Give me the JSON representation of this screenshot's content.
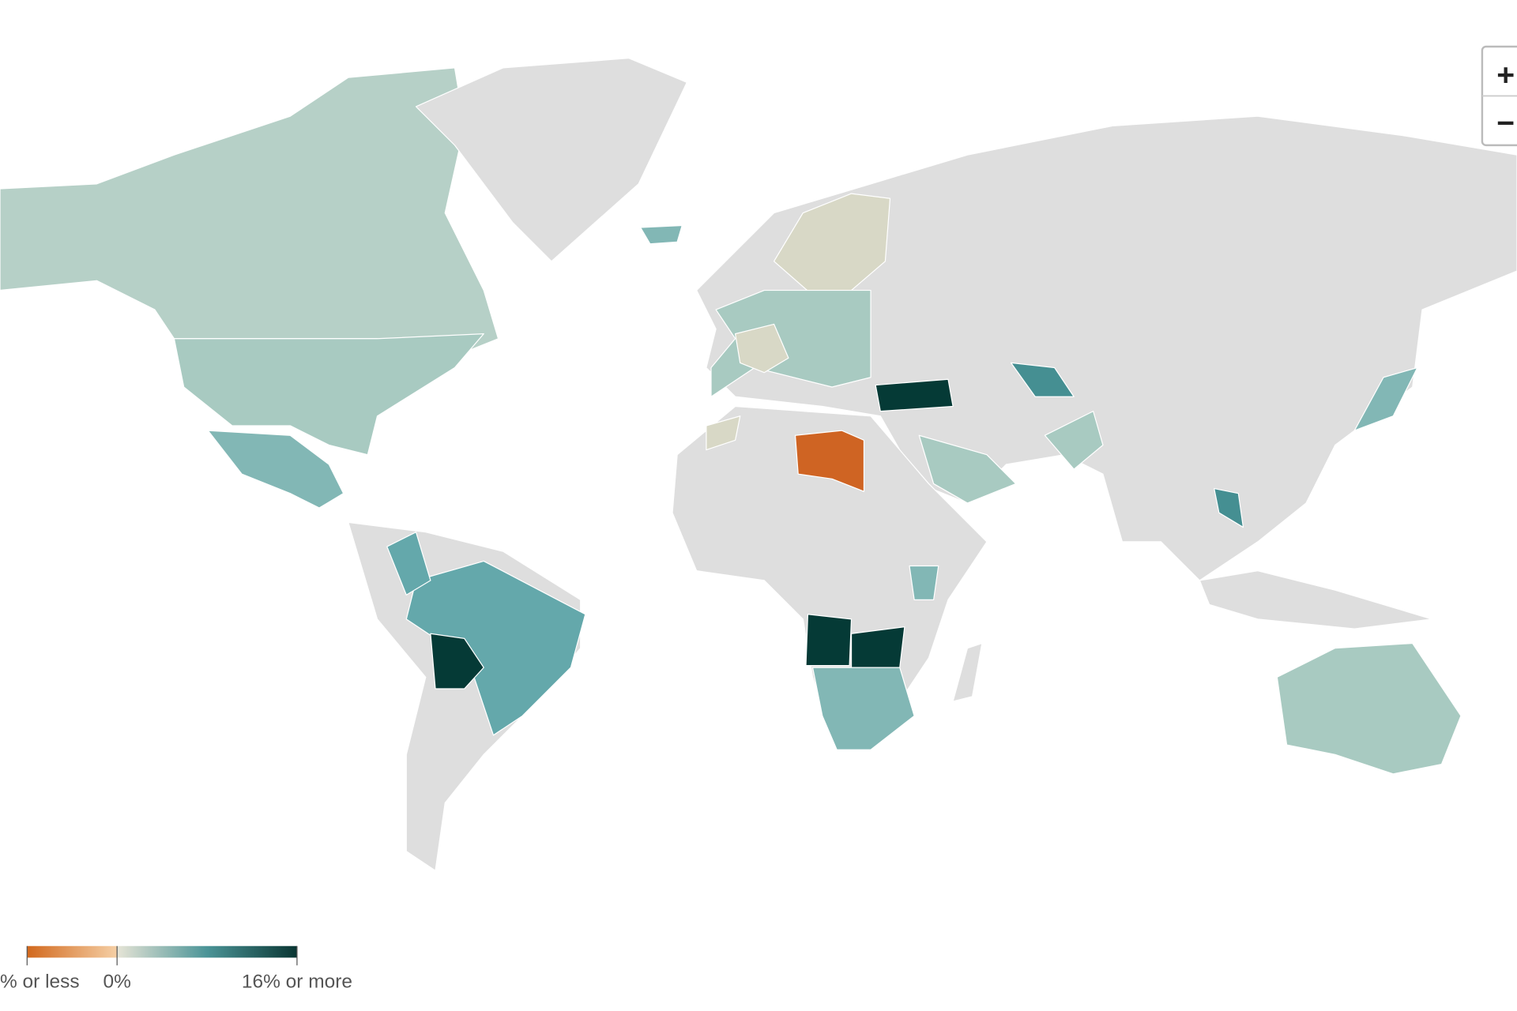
{
  "zoom": {
    "in": "+",
    "out": "−"
  },
  "legend": {
    "labels": [
      "% or less",
      "0%",
      "16% or more"
    ],
    "colors": [
      "#d2691e",
      "#f5cfa5",
      "#e6e4d6",
      "#4b9497",
      "#0a3633"
    ]
  }
}
